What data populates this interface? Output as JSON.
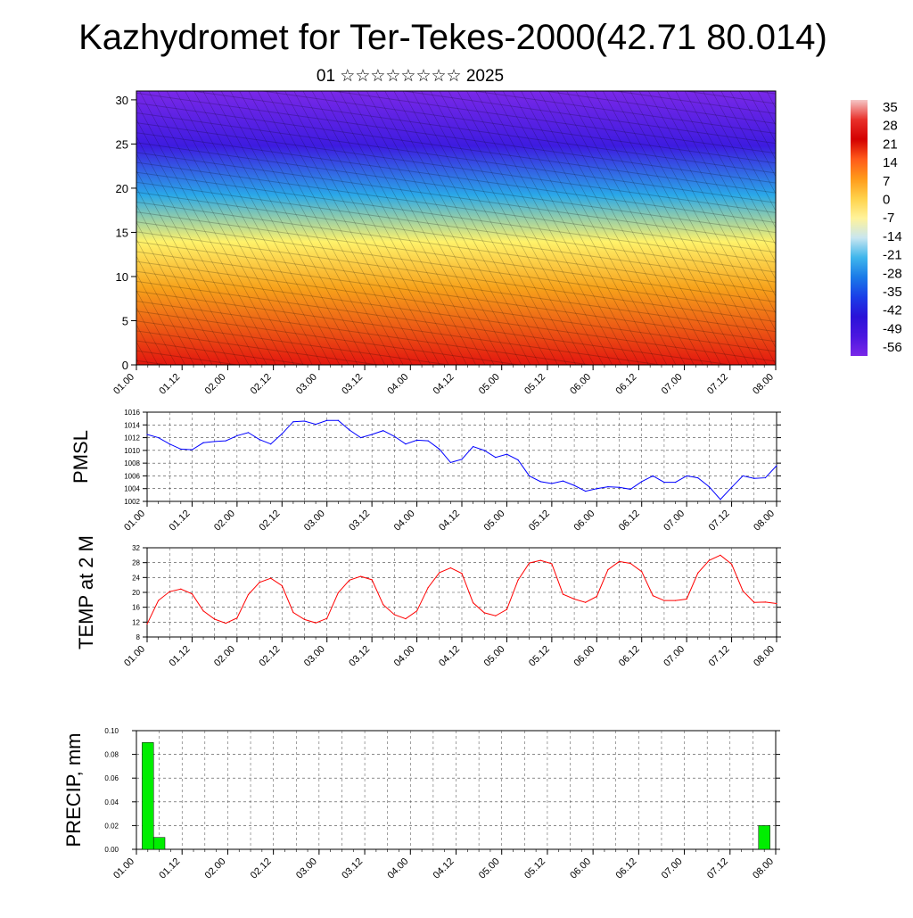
{
  "header": {
    "title": "Kazhydromet for Ter-Tekes-2000(42.71 80.014)",
    "subtitle": "01 ☆☆☆☆☆☆☆☆ 2025"
  },
  "colors": {
    "pmsl_line": "#0000ff",
    "temp_line": "#ff0000",
    "precip_bar": "#00ee00",
    "cross_hot": "#e3160f",
    "cross_warm": "#f7a21b",
    "cross_neutral": "#fff26a",
    "cross_cool": "#2aa8e8",
    "cross_cold": "#3d1be0",
    "cross_top": "#7a28e8"
  },
  "time_ticks": [
    "01.00",
    "01.12",
    "02.00",
    "02.12",
    "03.00",
    "03.12",
    "04.00",
    "04.12",
    "05.00",
    "05.12",
    "06.00",
    "06.12",
    "07.00",
    "07.12",
    "08.00"
  ],
  "chart_data": [
    {
      "type": "heatmap",
      "name": "cross-section",
      "x": [
        "01.00",
        "01.12",
        "02.00",
        "02.12",
        "03.00",
        "03.12",
        "04.00",
        "04.12",
        "05.00",
        "05.12",
        "06.00",
        "06.12",
        "07.00",
        "07.12",
        "08.00"
      ],
      "ylim": [
        0,
        31
      ],
      "yticks": [
        0,
        5,
        10,
        15,
        20,
        25,
        30
      ],
      "colorbar": {
        "labels": [
          "35",
          "28",
          "21",
          "14",
          "7",
          "0",
          "-7",
          "-14",
          "-21",
          "-28",
          "-35",
          "-42",
          "-49",
          "-56"
        ],
        "stops": [
          "#f5c6c6",
          "#e8302a",
          "#d40000",
          "#ff5a1a",
          "#ff9a1a",
          "#ffd24a",
          "#fff39a",
          "#c8e6f0",
          "#3fb6ec",
          "#1a7ae8",
          "#1a3ee8",
          "#2a12d8",
          "#4b16e0",
          "#7a28e8"
        ]
      }
    },
    {
      "type": "line",
      "name": "PMSL",
      "ylabel": "PMSL",
      "ylim": [
        1002,
        1016
      ],
      "yticks": [
        1002,
        1004,
        1006,
        1008,
        1010,
        1012,
        1014,
        1016
      ],
      "x": [
        "01.00",
        "01.03",
        "01.06",
        "01.09",
        "01.12",
        "01.15",
        "01.18",
        "01.21",
        "02.00",
        "02.03",
        "02.06",
        "02.09",
        "02.12",
        "02.15",
        "02.18",
        "02.21",
        "03.00",
        "03.03",
        "03.06",
        "03.09",
        "03.12",
        "03.15",
        "03.18",
        "03.21",
        "04.00",
        "04.03",
        "04.06",
        "04.09",
        "04.12",
        "04.15",
        "04.18",
        "04.21",
        "05.00",
        "05.03",
        "05.06",
        "05.09",
        "05.12",
        "05.15",
        "05.18",
        "05.21",
        "06.00",
        "06.03",
        "06.06",
        "06.09",
        "06.12",
        "06.15",
        "06.18",
        "06.21",
        "07.00",
        "07.03",
        "07.06",
        "07.09",
        "07.12",
        "07.15",
        "07.18",
        "07.21",
        "08.00"
      ],
      "values": [
        1012.5,
        1012.0,
        1011.0,
        1010.2,
        1010.1,
        1011.2,
        1011.4,
        1011.5,
        1012.3,
        1012.8,
        1011.7,
        1011.0,
        1012.6,
        1014.5,
        1014.6,
        1014.1,
        1014.7,
        1014.7,
        1013.2,
        1012.0,
        1012.5,
        1013.1,
        1012.2,
        1011.0,
        1011.6,
        1011.5,
        1010.2,
        1008.1,
        1008.6,
        1010.6,
        1010.0,
        1008.9,
        1009.4,
        1008.5,
        1006.0,
        1005.1,
        1004.8,
        1005.2,
        1004.5,
        1003.6,
        1004.0,
        1004.3,
        1004.2,
        1003.9,
        1005.1,
        1006.0,
        1005.0,
        1005.0,
        1006.0,
        1005.7,
        1004.3,
        1002.3,
        1004.2,
        1006.0,
        1005.6,
        1005.7,
        1007.6
      ]
    },
    {
      "type": "line",
      "name": "TEMP at 2 M",
      "ylabel": "TEMP at 2 M",
      "ylim": [
        8,
        32
      ],
      "yticks": [
        8,
        12,
        16,
        20,
        24,
        28,
        32
      ],
      "x": [
        "01.00",
        "01.03",
        "01.06",
        "01.09",
        "01.12",
        "01.15",
        "01.18",
        "01.21",
        "02.00",
        "02.03",
        "02.06",
        "02.09",
        "02.12",
        "02.15",
        "02.18",
        "02.21",
        "03.00",
        "03.03",
        "03.06",
        "03.09",
        "03.12",
        "03.15",
        "03.18",
        "03.21",
        "04.00",
        "04.03",
        "04.06",
        "04.09",
        "04.12",
        "04.15",
        "04.18",
        "04.21",
        "05.00",
        "05.03",
        "05.06",
        "05.09",
        "05.12",
        "05.15",
        "05.18",
        "05.21",
        "06.00",
        "06.03",
        "06.06",
        "06.09",
        "06.12",
        "06.15",
        "06.18",
        "06.21",
        "07.00",
        "07.03",
        "07.06",
        "07.09",
        "07.12",
        "07.15",
        "07.18",
        "07.21",
        "08.00"
      ],
      "values": [
        11.5,
        17.8,
        20.2,
        20.9,
        19.6,
        15.0,
        12.8,
        11.7,
        13.1,
        19.4,
        22.7,
        23.8,
        21.8,
        14.6,
        12.7,
        11.8,
        13.0,
        19.9,
        23.3,
        24.3,
        23.4,
        16.7,
        14.0,
        12.9,
        15.0,
        21.3,
        25.3,
        26.6,
        25.1,
        17.2,
        14.5,
        13.7,
        15.4,
        23.3,
        27.9,
        28.6,
        27.7,
        19.5,
        18.2,
        17.3,
        18.9,
        26.1,
        28.3,
        27.8,
        25.6,
        19.1,
        17.8,
        17.8,
        18.2,
        25.2,
        28.6,
        30.0,
        27.6,
        20.4,
        17.3,
        17.4,
        17.0
      ]
    },
    {
      "type": "bar",
      "name": "PRECIP",
      "ylabel": "PRECIP, mm",
      "ylim": [
        0,
        0.1
      ],
      "yticks": [
        "0.00",
        "0.02",
        "0.04",
        "0.06",
        "0.08",
        "0.10"
      ],
      "x": [
        "01.03",
        "01.06",
        "07.21"
      ],
      "values": [
        0.09,
        0.01,
        0.02
      ]
    }
  ]
}
